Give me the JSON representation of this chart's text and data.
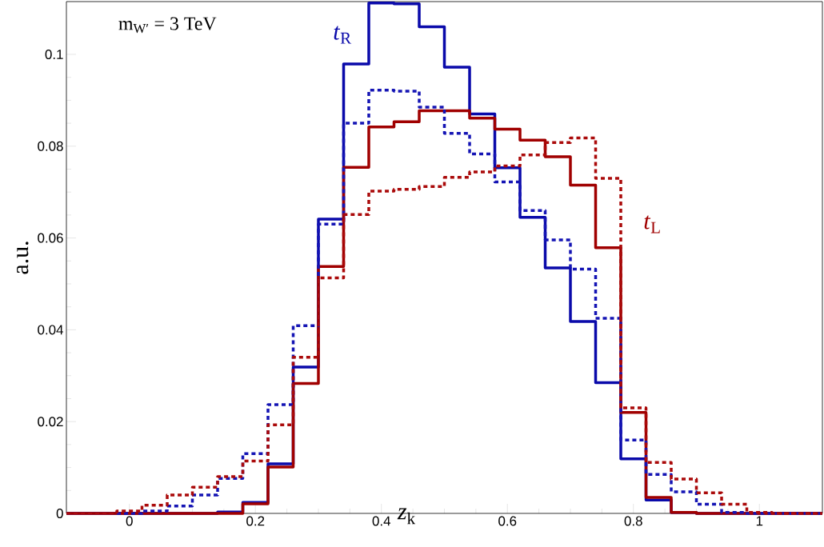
{
  "chart_data": {
    "type": "histogram",
    "xlabel": "*z*$_{k}$",
    "ylabel": "a.u.",
    "bins": [
      -0.1,
      -0.06,
      -0.02,
      0.02,
      0.06,
      0.1,
      0.14,
      0.18,
      0.22,
      0.26,
      0.3,
      0.34,
      0.38,
      0.42,
      0.46,
      0.5,
      0.54,
      0.58,
      0.62,
      0.66,
      0.7,
      0.74,
      0.78,
      0.82,
      0.86,
      0.9,
      0.94,
      0.98,
      1.02,
      1.06,
      1.1
    ],
    "series": [
      {
        "color": "#0a0aaa",
        "line_style": "solid",
        "values": [
          0,
          0,
          0,
          0,
          0,
          0,
          0.0003,
          0.0024,
          0.0108,
          0.0319,
          0.0641,
          0.0979,
          0.1112,
          0.111,
          0.106,
          0.0972,
          0.087,
          0.0753,
          0.0645,
          0.0535,
          0.0418,
          0.0285,
          0.0119,
          0.0029,
          0.0002,
          0,
          0,
          0,
          0,
          0
        ]
      },
      {
        "color": "#a00000",
        "line_style": "solid",
        "values": [
          0,
          0,
          0,
          0,
          0,
          0,
          0,
          0.0021,
          0.0101,
          0.0283,
          0.0538,
          0.0754,
          0.0842,
          0.0853,
          0.0877,
          0.0877,
          0.0861,
          0.0837,
          0.0813,
          0.0777,
          0.0715,
          0.0579,
          0.022,
          0.0035,
          0.0002,
          0,
          0,
          0,
          0,
          0
        ]
      },
      {
        "color": "#1414b4",
        "line_style": "dashed",
        "values": [
          0,
          0,
          0,
          0.0005,
          0.0016,
          0.004,
          0.0076,
          0.013,
          0.0237,
          0.0409,
          0.063,
          0.085,
          0.0922,
          0.092,
          0.0885,
          0.0828,
          0.0783,
          0.0722,
          0.066,
          0.0596,
          0.0532,
          0.0425,
          0.016,
          0.0085,
          0.0047,
          0.002,
          0.0002,
          0,
          0,
          0
        ]
      },
      {
        "color": "#aa0a0a",
        "line_style": "dashed",
        "values": [
          0,
          0,
          0.0005,
          0.0018,
          0.004,
          0.0057,
          0.008,
          0.0114,
          0.0193,
          0.034,
          0.0513,
          0.0651,
          0.0702,
          0.0706,
          0.0712,
          0.0732,
          0.0744,
          0.0757,
          0.0781,
          0.0808,
          0.0818,
          0.073,
          0.023,
          0.0111,
          0.0075,
          0.0045,
          0.002,
          0.0002,
          0,
          0
        ]
      }
    ],
    "annotations": [
      "m$_{W′}$ = 3 TeV",
      "*t*$_{R}$",
      "*t*$_{L}$"
    ],
    "xlim": [
      -0.1,
      1.1
    ],
    "ylim": [
      0,
      0.1115
    ],
    "xticks": [
      0,
      0.2,
      0.4,
      0.6,
      0.8,
      1
    ],
    "yticks": [
      0,
      0.02,
      0.04,
      0.06,
      0.08,
      0.1
    ],
    "grid": false,
    "marker": "none"
  }
}
